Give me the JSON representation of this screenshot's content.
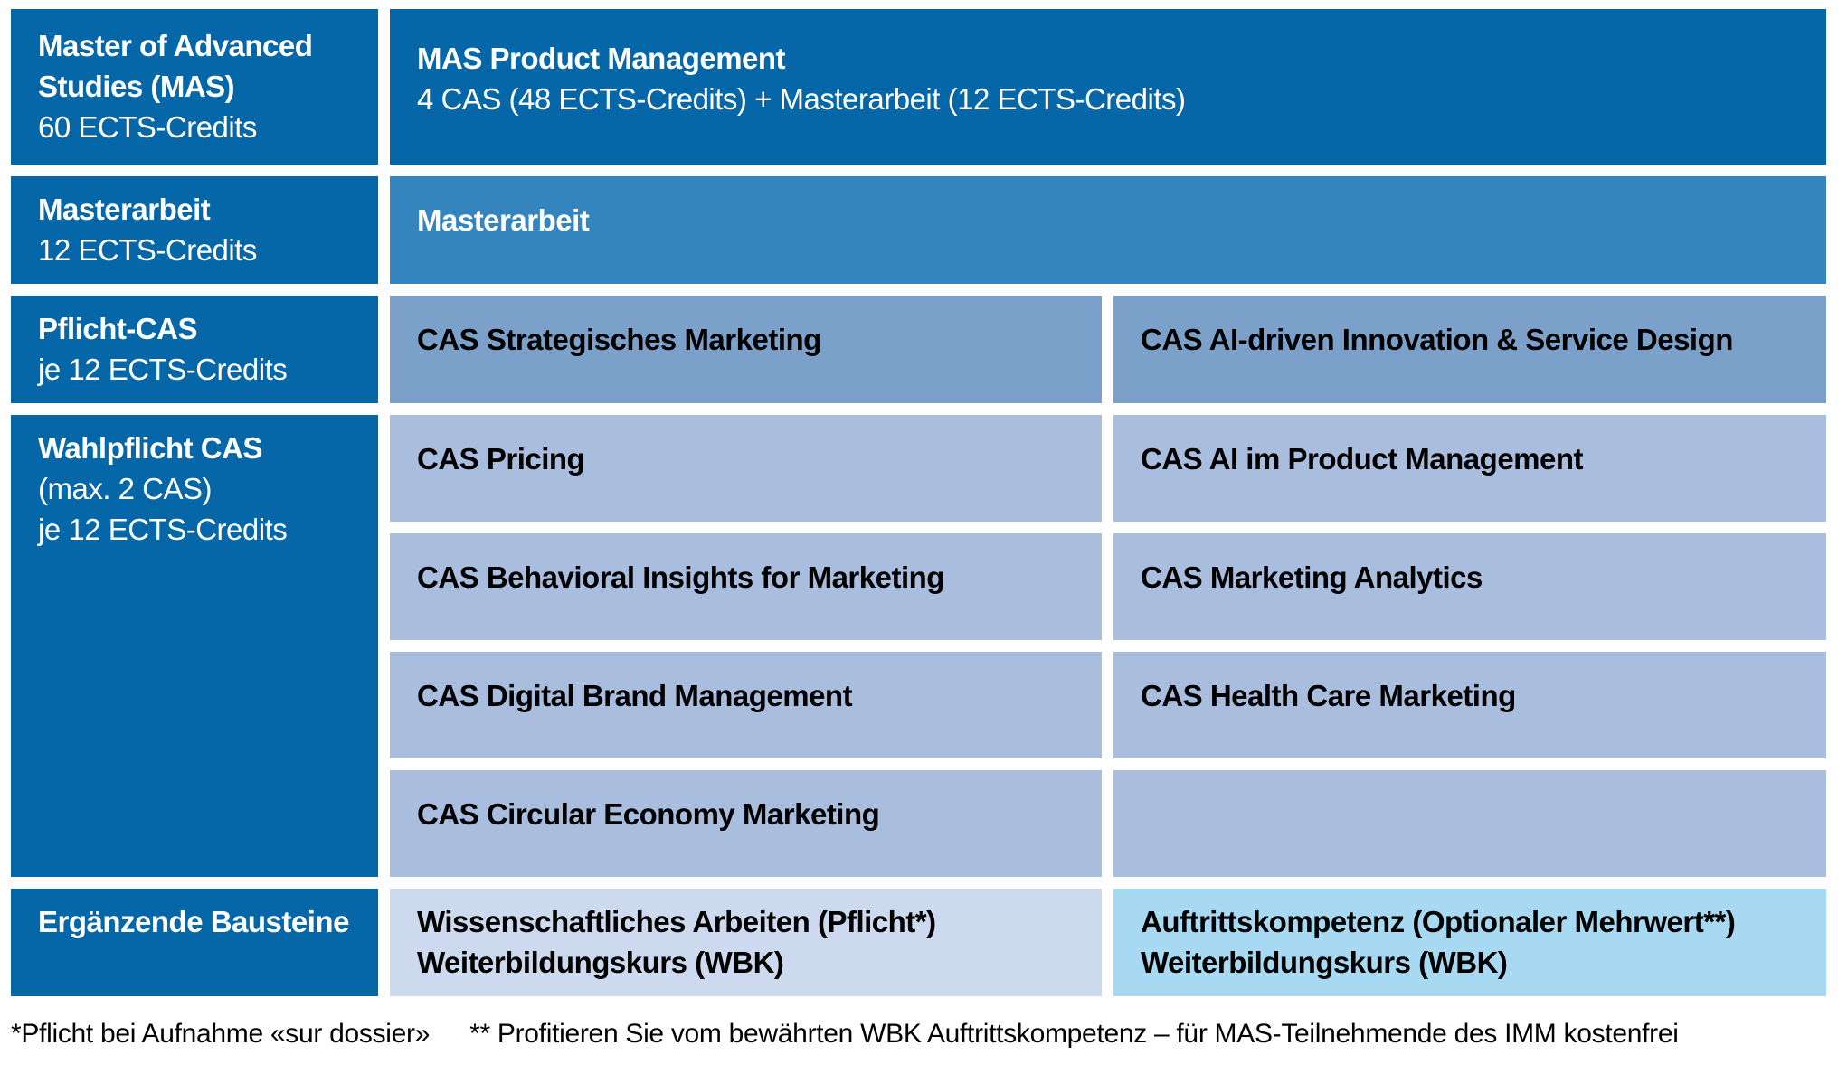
{
  "colors": {
    "dark_blue": "#0667a8",
    "medium_blue": "#3484bd",
    "pflicht_blue": "#7ba1cb",
    "wahlpflicht_blue": "#a9bddf",
    "wbk_pflicht_blue": "#cdd9ee",
    "wbk_optional_blue": "#a7daf2",
    "text_on_dark": "#ffffff",
    "text_on_light": "#000000",
    "background": "#ffffff"
  },
  "sidebar": {
    "mas": {
      "title": "Master of Advanced Studies (MAS)",
      "subtitle": "60 ECTS-Credits"
    },
    "masterarbeit": {
      "title": "Masterarbeit",
      "subtitle": "12 ECTS-Credits"
    },
    "pflicht": {
      "title": "Pflicht-CAS",
      "subtitle": "je 12 ECTS-Credits"
    },
    "wahlpflicht": {
      "title": "Wahlpflicht CAS",
      "subtitle1": "(max. 2 CAS)",
      "subtitle2": "je 12 ECTS-Credits"
    },
    "ergaenzend": {
      "title": "Ergänzende Bausteine"
    }
  },
  "header": {
    "title": "MAS Product Management",
    "subtitle": "4 CAS (48 ECTS-Credits) + Masterarbeit (12 ECTS-Credits)"
  },
  "masterarbeit_cell": {
    "title": "Masterarbeit"
  },
  "pflicht_cells": {
    "left": "CAS Strategisches Marketing",
    "right": "CAS AI-driven Innovation & Service Design"
  },
  "wahlpflicht_rows": [
    {
      "left": "CAS Pricing",
      "right": "CAS AI im Product Management"
    },
    {
      "left": "CAS Behavioral Insights for Marketing",
      "right": "CAS Marketing Analytics"
    },
    {
      "left": "CAS Digital Brand Management",
      "right": "CAS Health Care Marketing"
    },
    {
      "left": "CAS Circular Economy Marketing",
      "right": ""
    }
  ],
  "wbk_cells": {
    "left": {
      "line1": "Wissenschaftliches Arbeiten (Pflicht*)",
      "line2": "Weiterbildungskurs (WBK)"
    },
    "right": {
      "line1": "Auftrittskompetenz (Optionaler Mehrwert**)",
      "line2": "Weiterbildungskurs (WBK)"
    }
  },
  "footnotes": [
    "*Pflicht bei Aufnahme «sur dossier»",
    "** Profitieren Sie vom bewährten WBK Auftrittskompetenz – für MAS-Teilnehmende des IMM kostenfrei"
  ]
}
